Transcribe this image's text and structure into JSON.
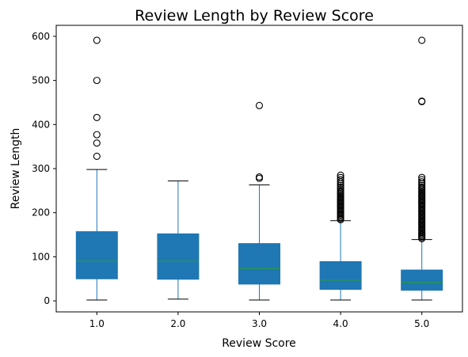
{
  "chart_data": {
    "type": "box",
    "title": "Review Length by Review Score",
    "xlabel": "Review Score",
    "ylabel": "Review Length",
    "categories": [
      "1.0",
      "2.0",
      "3.0",
      "4.0",
      "5.0"
    ],
    "ylim": [
      -25,
      625
    ],
    "yticks": [
      0,
      100,
      200,
      300,
      400,
      500,
      600
    ],
    "grid": false,
    "box_color": "#1f77b4",
    "median_color": "#2ca02c",
    "boxes": [
      {
        "category": "1.0",
        "whisker_low": 2,
        "q1": 50,
        "median": 90,
        "q3": 157,
        "whisker_high": 298,
        "outliers": [
          328,
          358,
          377,
          416,
          500,
          591
        ]
      },
      {
        "category": "2.0",
        "whisker_low": 4,
        "q1": 49,
        "median": 90,
        "q3": 152,
        "whisker_high": 272,
        "outliers": []
      },
      {
        "category": "3.0",
        "whisker_low": 2,
        "q1": 38,
        "median": 73,
        "q3": 130,
        "whisker_high": 263,
        "outliers": [
          278,
          281,
          443
        ]
      },
      {
        "category": "4.0",
        "whisker_low": 2,
        "q1": 26,
        "median": 47,
        "q3": 89,
        "whisker_high": 182,
        "outliers": [
          184,
          187,
          190,
          193,
          196,
          199,
          202,
          205,
          208,
          211,
          214,
          217,
          220,
          223,
          226,
          229,
          232,
          235,
          238,
          241,
          244,
          247,
          250,
          254,
          258,
          262,
          266,
          270,
          275,
          280,
          285
        ]
      },
      {
        "category": "5.0",
        "whisker_low": 2,
        "q1": 24,
        "median": 42,
        "q3": 70,
        "whisker_high": 139,
        "outliers": [
          141,
          144,
          147,
          150,
          153,
          156,
          159,
          162,
          165,
          168,
          171,
          174,
          177,
          180,
          183,
          186,
          189,
          192,
          195,
          198,
          201,
          204,
          207,
          210,
          213,
          216,
          219,
          222,
          225,
          228,
          231,
          234,
          237,
          240,
          243,
          246,
          249,
          252,
          255,
          258,
          262,
          266,
          270,
          275,
          280,
          452,
          453,
          591
        ]
      }
    ]
  }
}
